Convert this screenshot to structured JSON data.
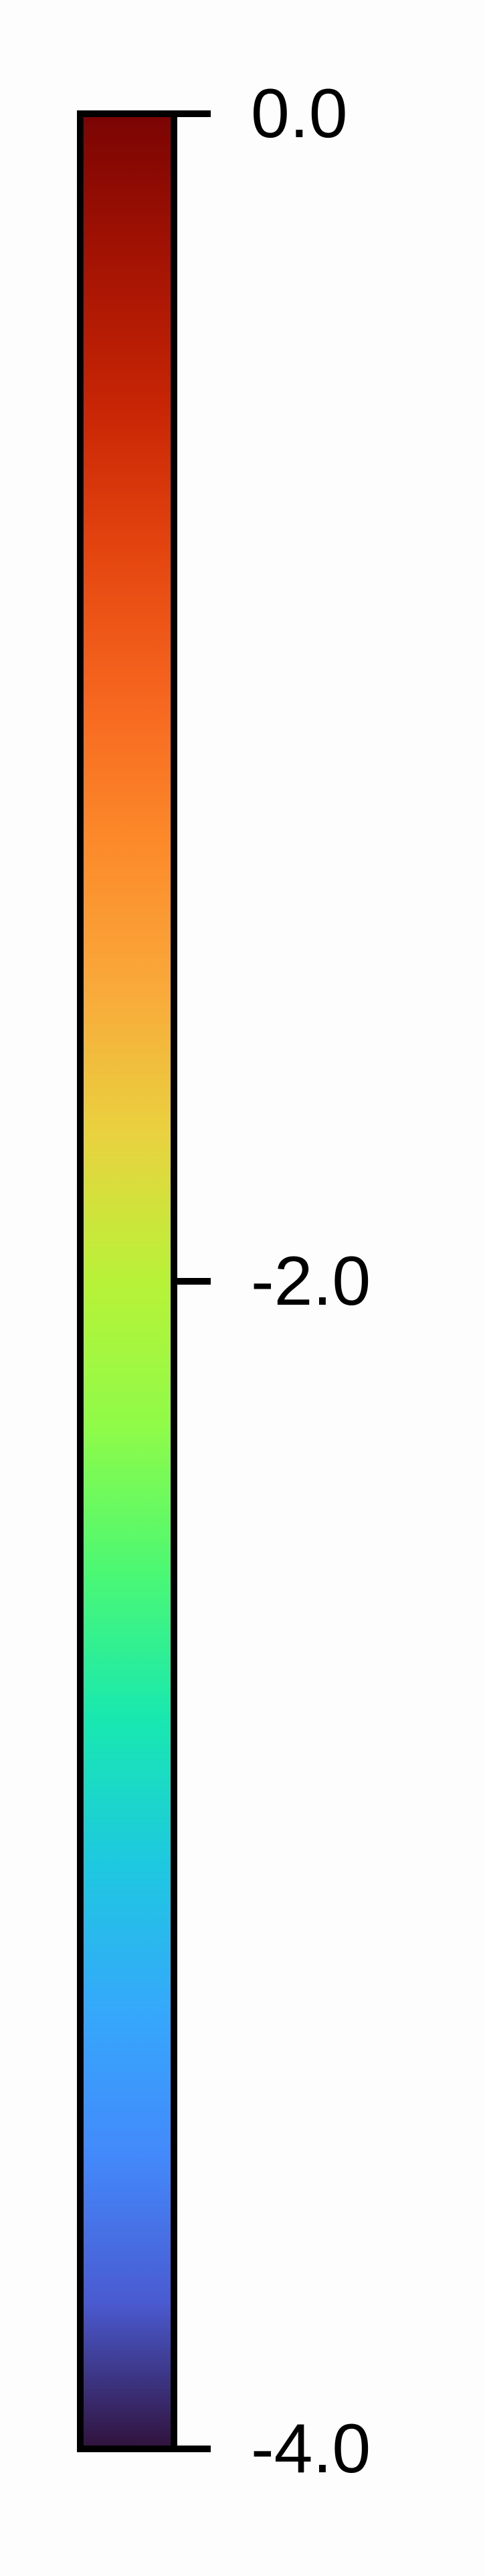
{
  "chart_data": {
    "type": "heatmap",
    "title": "",
    "colorbar": {
      "orientation": "vertical",
      "colormap": "turbo",
      "vmin": -4.0,
      "vmax": 0.0,
      "ticks": [
        {
          "value": 0.0,
          "label": "0.0"
        },
        {
          "value": -2.0,
          "label": "-2.0"
        },
        {
          "value": -4.0,
          "label": "-4.0"
        }
      ],
      "color_stops": [
        {
          "value": 0.0,
          "color": "#7a0403"
        },
        {
          "value": -0.25,
          "color": "#a41303"
        },
        {
          "value": -0.5,
          "color": "#c72505"
        },
        {
          "value": -0.75,
          "color": "#e4450f"
        },
        {
          "value": -1.0,
          "color": "#f6661f"
        },
        {
          "value": -1.25,
          "color": "#fc8a2a"
        },
        {
          "value": -1.5,
          "color": "#f9a93a"
        },
        {
          "value": -1.75,
          "color": "#e9d23f"
        },
        {
          "value": -2.0,
          "color": "#b8f238"
        },
        {
          "value": -2.25,
          "color": "#8ffb48"
        },
        {
          "value": -2.5,
          "color": "#4bf874"
        },
        {
          "value": -2.75,
          "color": "#18e8b0"
        },
        {
          "value": -3.0,
          "color": "#1ec8e0"
        },
        {
          "value": -3.25,
          "color": "#35a8fb"
        },
        {
          "value": -3.5,
          "color": "#4389fb"
        },
        {
          "value": -3.75,
          "color": "#4a5ad0"
        },
        {
          "value": -4.0,
          "color": "#30123b"
        }
      ]
    }
  }
}
